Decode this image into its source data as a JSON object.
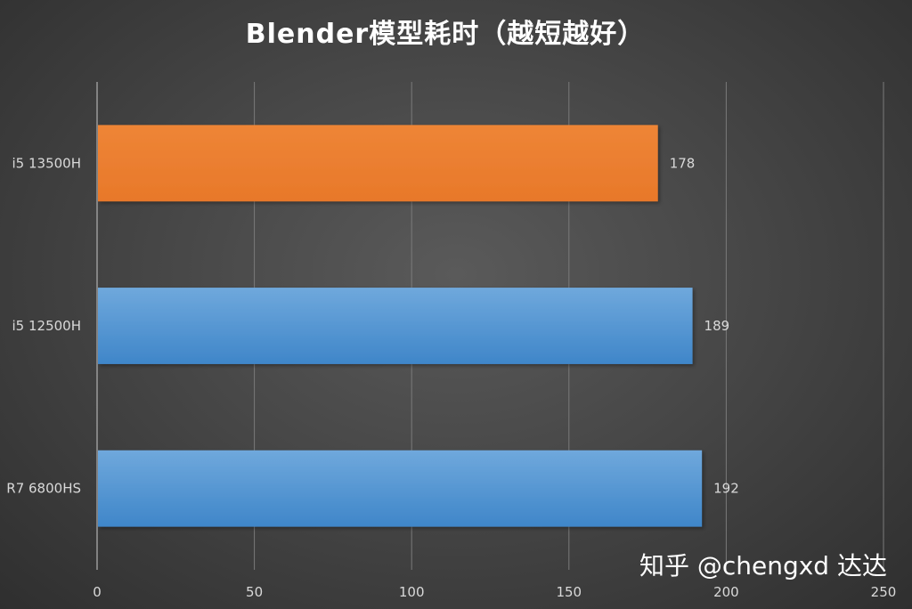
{
  "chart_data": {
    "type": "bar",
    "orientation": "horizontal",
    "title": "Blender模型耗时（越短越好）",
    "xlabel": "",
    "ylabel": "",
    "categories": [
      "i5 13500H",
      "i5 12500H",
      "R7 6800HS"
    ],
    "values": [
      178,
      189,
      192
    ],
    "bar_colors": [
      "#ED7D31",
      "#5B9BD5",
      "#5B9BD5"
    ],
    "xlim": [
      0,
      250
    ],
    "xticks": [
      0,
      50,
      100,
      150,
      200,
      250
    ],
    "grid": true,
    "data_labels": true,
    "legend": "none"
  },
  "watermark": "知乎 @chengxd 达达"
}
